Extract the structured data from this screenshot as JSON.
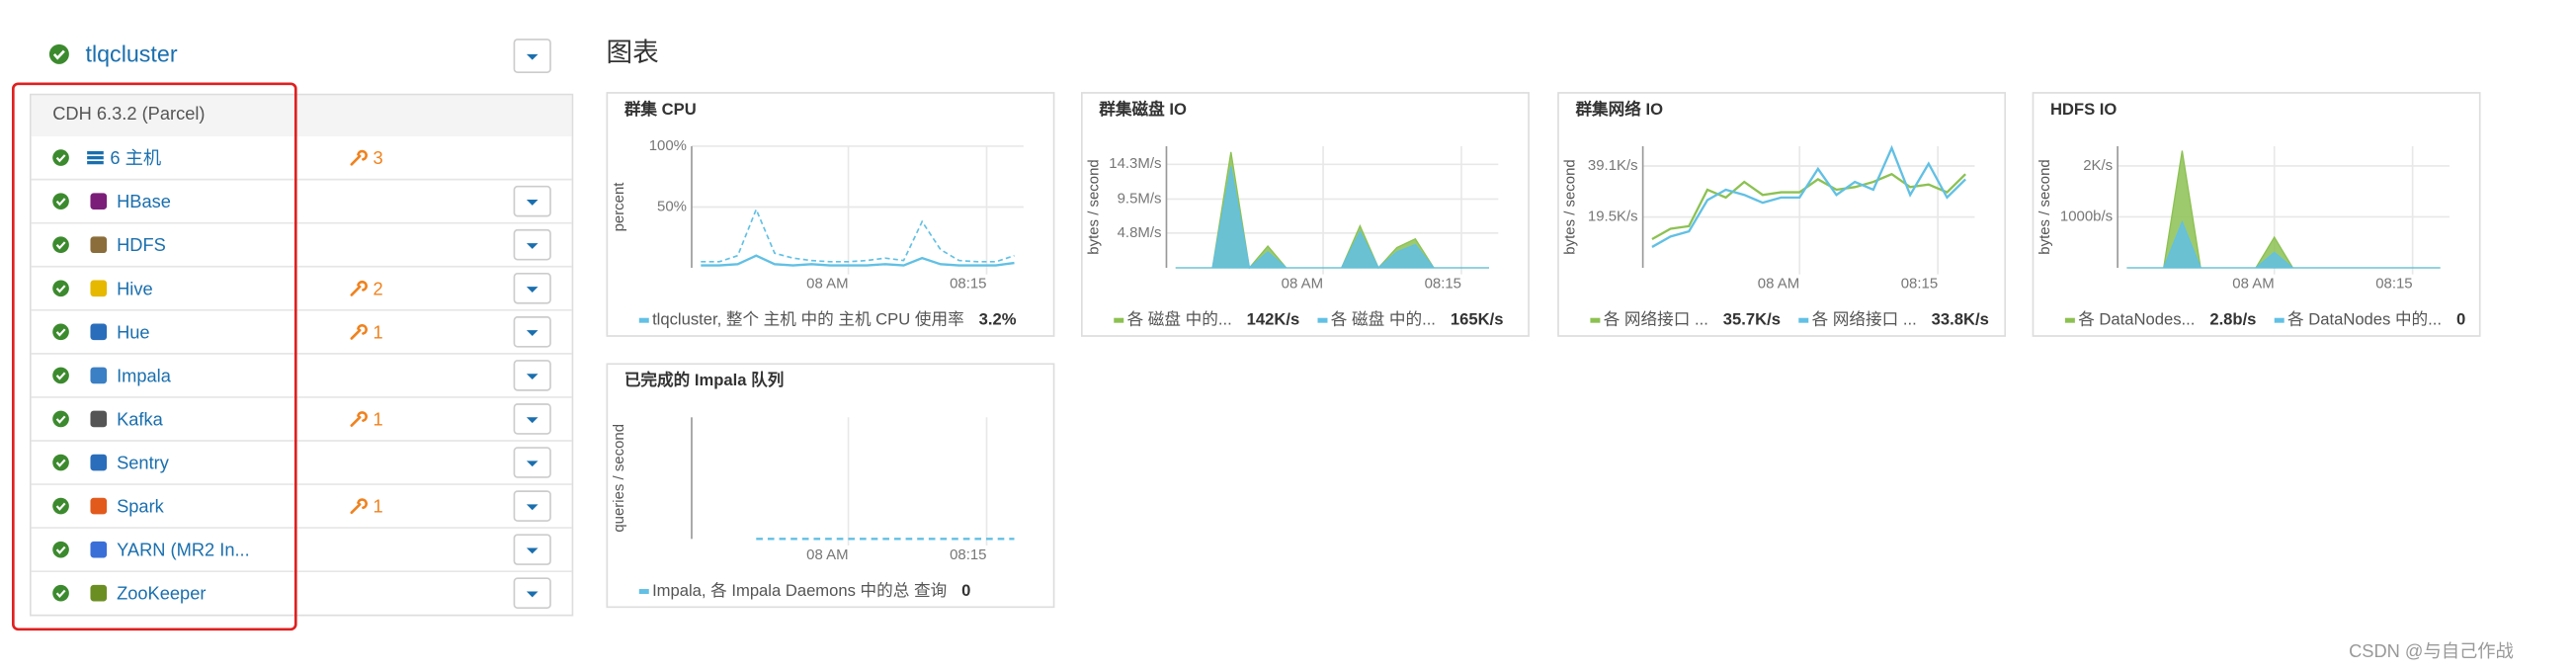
{
  "cluster": {
    "name": "tlqcluster",
    "version": "CDH 6.3.2 (Parcel)"
  },
  "services": [
    {
      "name": "6 主机",
      "alerts": 3
    },
    {
      "name": "HBase"
    },
    {
      "name": "HDFS"
    },
    {
      "name": "Hive",
      "alerts": 2
    },
    {
      "name": "Hue",
      "alerts": 1
    },
    {
      "name": "Impala"
    },
    {
      "name": "Kafka",
      "alerts": 1
    },
    {
      "name": "Sentry"
    },
    {
      "name": "Spark",
      "alerts": 1
    },
    {
      "name": "YARN (MR2 In..."
    },
    {
      "name": "ZooKeeper"
    }
  ],
  "charts_heading": "图表",
  "charts": [
    {
      "title": "群集 CPU",
      "y_label": "percent",
      "area": false,
      "x": [
        "07:44",
        "07:46",
        "07:48",
        "07:50",
        "07:52",
        "07:54",
        "07:56",
        "07:58",
        "08:00",
        "08:02",
        "08:04",
        "08:06",
        "08:08",
        "08:10",
        "08:12",
        "08:14",
        "08:16",
        "08:18"
      ],
      "xlim": [
        "07:43",
        "08:19"
      ],
      "xticks": [
        {
          "value": "08:00",
          "label": "08 AM"
        },
        "08:15"
      ],
      "ylim": [
        0,
        100
      ],
      "yticks": [
        {
          "value": 100,
          "label": "100%"
        },
        {
          "value": 50,
          "label": "50%"
        }
      ],
      "series": [
        {
          "name": "tlqcluster, 整个 主机 中的 主机 CPU 使用率",
          "value_label": "3.2%",
          "color": "#62c0e4",
          "values": [
            2,
            2,
            3,
            10,
            3,
            2,
            3,
            2,
            2,
            2,
            3,
            2,
            8,
            3,
            2,
            2,
            2,
            4
          ],
          "max": [
            5,
            5,
            10,
            48,
            12,
            8,
            6,
            5,
            5,
            6,
            8,
            6,
            38,
            15,
            6,
            5,
            5,
            10
          ]
        }
      ]
    },
    {
      "title": "群集磁盘 IO",
      "y_label": "bytes / second",
      "area": true,
      "x": [
        "07:44",
        "07:46",
        "07:48",
        "07:50",
        "07:52",
        "07:54",
        "07:56",
        "07:58",
        "08:00",
        "08:02",
        "08:04",
        "08:06",
        "08:08",
        "08:10",
        "08:12",
        "08:14",
        "08:16",
        "08:18"
      ],
      "xlim": [
        "07:43",
        "08:19"
      ],
      "xticks": [
        {
          "value": "08:00",
          "label": "08 AM"
        },
        "08:15"
      ],
      "ylim": [
        0,
        16800000
      ],
      "yticks": [
        {
          "value": 14300000,
          "label": "14.3M/s"
        },
        {
          "value": 9500000,
          "label": "9.5M/s"
        },
        {
          "value": 4800000,
          "label": "4.8M/s"
        }
      ],
      "series": [
        {
          "name": "各 磁盘 中的...",
          "value_label": "142K/s",
          "color": "#8cc152",
          "values": [
            0,
            0,
            0,
            16000000,
            0,
            3000000,
            0,
            0,
            0,
            0,
            5800000,
            0,
            2800000,
            4000000,
            0,
            0,
            0,
            0
          ]
        },
        {
          "name": "各 磁盘 中的...",
          "value_label": "165K/s",
          "color": "#62c0e4",
          "values": [
            0,
            0,
            0,
            14000000,
            0,
            2200000,
            0,
            0,
            0,
            0,
            5000000,
            0,
            2200000,
            3200000,
            0,
            0,
            0,
            0
          ]
        }
      ]
    },
    {
      "title": "群集网络 IO",
      "y_label": "bytes / second",
      "area": false,
      "x": [
        "07:44",
        "07:46",
        "07:48",
        "07:50",
        "07:52",
        "07:54",
        "07:56",
        "07:58",
        "08:00",
        "08:02",
        "08:04",
        "08:06",
        "08:08",
        "08:10",
        "08:12",
        "08:14",
        "08:16",
        "08:18"
      ],
      "xlim": [
        "07:43",
        "08:19"
      ],
      "xticks": [
        {
          "value": "08:00",
          "label": "08 AM"
        },
        "08:15"
      ],
      "ylim": [
        0,
        46700
      ],
      "yticks": [
        {
          "value": 39100,
          "label": "39.1K/s"
        },
        {
          "value": 19500,
          "label": "19.5K/s"
        }
      ],
      "series": [
        {
          "name": "各 网络接口 ...",
          "value_label": "35.7K/s",
          "color": "#8cc152",
          "values": [
            11000,
            15000,
            16000,
            30000,
            27000,
            33000,
            28000,
            29000,
            29000,
            34000,
            30000,
            31000,
            33000,
            36000,
            31000,
            32000,
            29000,
            36000
          ]
        },
        {
          "name": "各 网络接口 ...",
          "value_label": "33.8K/s",
          "color": "#62c0e4",
          "values": [
            8000,
            12000,
            14000,
            26000,
            30000,
            28000,
            25000,
            27000,
            27000,
            38000,
            28000,
            33000,
            30000,
            46000,
            28000,
            40000,
            27000,
            34000
          ]
        }
      ]
    },
    {
      "title": "HDFS IO",
      "y_label": "bytes / second",
      "area": true,
      "x": [
        "07:44",
        "07:46",
        "07:48",
        "07:50",
        "07:52",
        "07:54",
        "07:56",
        "07:58",
        "08:00",
        "08:02",
        "08:04",
        "08:06",
        "08:08",
        "08:10",
        "08:12",
        "08:14",
        "08:16",
        "08:18"
      ],
      "xlim": [
        "07:43",
        "08:19"
      ],
      "xticks": [
        {
          "value": "08:00",
          "label": "08 AM"
        },
        "08:15"
      ],
      "ylim": [
        0,
        2387
      ],
      "yticks": [
        {
          "value": 2000,
          "label": "2K/s"
        },
        {
          "value": 1000,
          "label": "1000b/s"
        }
      ],
      "series": [
        {
          "name": "各 DataNodes...",
          "value_label": "2.8b/s",
          "color": "#8cc152",
          "values": [
            0,
            0,
            0,
            2300,
            0,
            0,
            0,
            0,
            600,
            0,
            0,
            0,
            0,
            0,
            0,
            0,
            0,
            0
          ]
        },
        {
          "name": "各 DataNodes 中的...",
          "value_label": "0",
          "color": "#62c0e4",
          "values": [
            0,
            0,
            0,
            900,
            0,
            0,
            0,
            0,
            300,
            0,
            0,
            0,
            0,
            0,
            0,
            0,
            0,
            0
          ]
        }
      ]
    },
    {
      "title": "已完成的 Impala 队列",
      "y_label": "queries / second",
      "area": false,
      "x": [
        "07:44",
        "07:46",
        "07:48",
        "07:50",
        "07:52",
        "07:54",
        "07:56",
        "07:58",
        "08:00",
        "08:02",
        "08:04",
        "08:06",
        "08:08",
        "08:10",
        "08:12",
        "08:14",
        "08:16",
        "08:18"
      ],
      "xlim": [
        "07:43",
        "08:19"
      ],
      "xticks": [
        {
          "value": "08:00",
          "label": "08 AM"
        },
        "08:15"
      ],
      "ylim": [
        0,
        1
      ],
      "yticks": [],
      "series": [
        {
          "name": "Impala, 各 Impala Daemons 中的总 查询",
          "value_label": "0",
          "color": "#62c0e4",
          "dash": true,
          "values": [
            null,
            null,
            null,
            0,
            0,
            0,
            0,
            0,
            0,
            0,
            0,
            0,
            0,
            0,
            0,
            0,
            0,
            0
          ]
        }
      ]
    }
  ],
  "watermark": "CSDN @与自己作战"
}
